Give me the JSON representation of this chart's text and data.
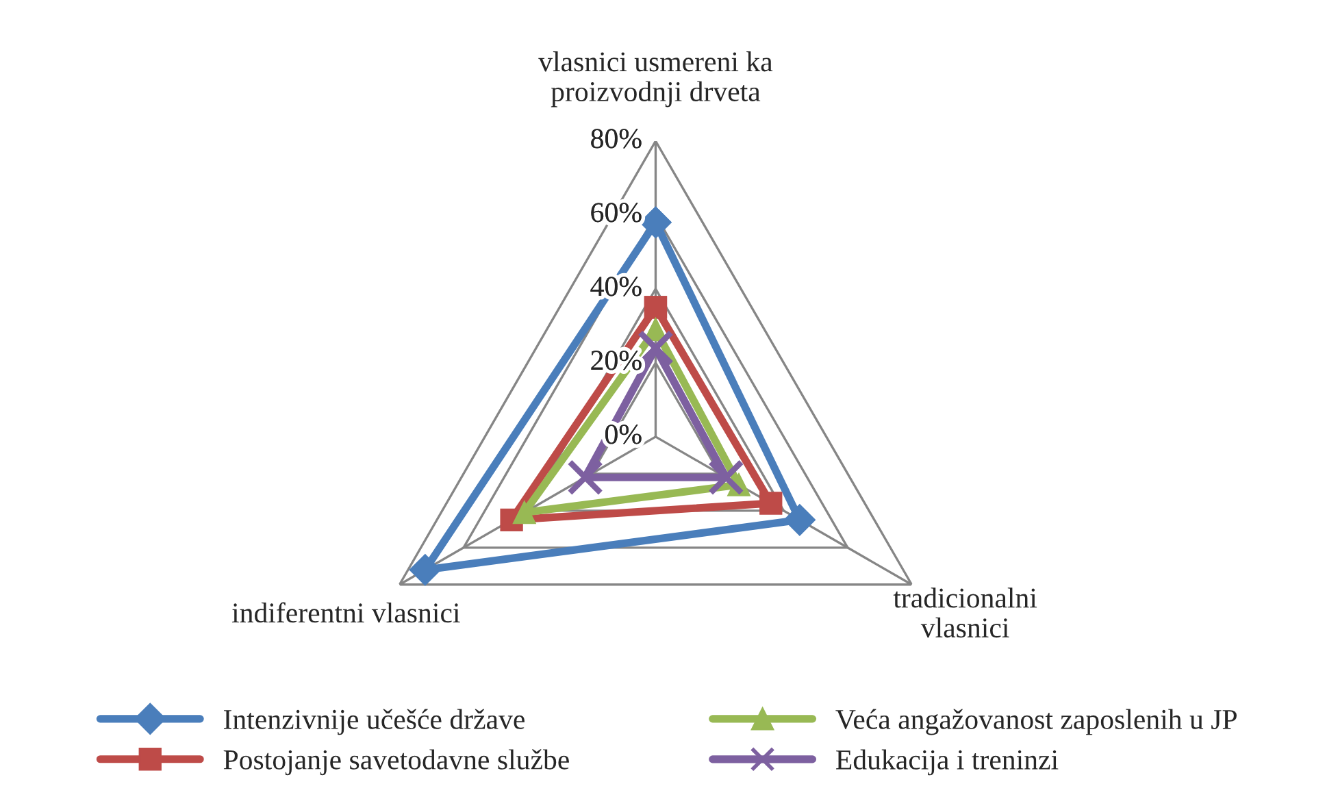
{
  "chart_data": {
    "type": "radar",
    "categories": [
      "vlasnici usmereni ka\nproizvodnji drveta",
      "tradicionalni\nvlasnici",
      "indiferentni vlasnici"
    ],
    "ylim": [
      0,
      0.8
    ],
    "yticks": [
      {
        "value": 0,
        "label": "0%"
      },
      {
        "value": 0.2,
        "label": "20%"
      },
      {
        "value": 0.4,
        "label": "40%"
      },
      {
        "value": 0.6,
        "label": "60%"
      },
      {
        "value": 0.8,
        "label": "80%"
      }
    ],
    "grid": true,
    "legend": "bottom",
    "series": [
      {
        "name": "Intenzivnije učešće države",
        "color": "#4a7ebb",
        "marker": "diamond",
        "values": [
          0.58,
          0.45,
          0.72
        ]
      },
      {
        "name": "Postojanje savetodavne službe",
        "color": "#be4b48",
        "marker": "square",
        "values": [
          0.35,
          0.36,
          0.45
        ]
      },
      {
        "name": "Veća angažovanost zaposlenih u JP",
        "color": "#98b954",
        "marker": "triangle",
        "values": [
          0.29,
          0.26,
          0.41
        ]
      },
      {
        "name": "Edukacija i treninzi",
        "color": "#7d60a0",
        "marker": "cross",
        "values": [
          0.24,
          0.22,
          0.22
        ]
      }
    ]
  }
}
